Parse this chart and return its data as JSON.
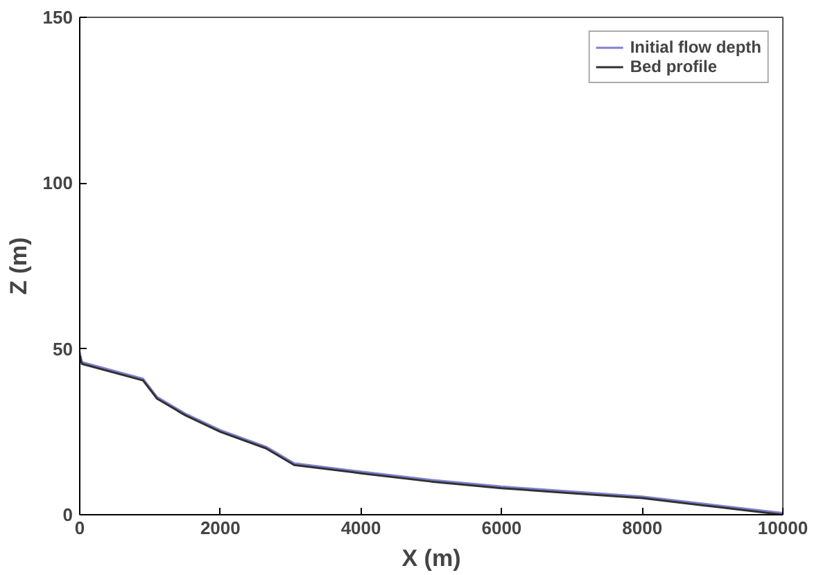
{
  "chart_data": {
    "type": "line",
    "xlabel": "X (m)",
    "ylabel": "Z (m)",
    "xlim": [
      0,
      10000
    ],
    "ylim": [
      0,
      150
    ],
    "xticks": [
      0,
      2000,
      4000,
      6000,
      8000,
      10000
    ],
    "yticks": [
      0,
      50,
      100,
      150
    ],
    "grid": false,
    "legend": "top right",
    "line_style": "solid",
    "marker": "none",
    "x": [
      0,
      30,
      900,
      1100,
      1500,
      2000,
      2650,
      3050,
      4000,
      5000,
      6000,
      7000,
      8000,
      9000,
      10000
    ],
    "series": [
      {
        "name": "Initial flow depth",
        "color": "#8080d0",
        "values": [
          49,
          46,
          41,
          35.5,
          30.5,
          25.5,
          20.5,
          15.5,
          13,
          10.5,
          8.5,
          7,
          5.5,
          3,
          0.5
        ]
      },
      {
        "name": "Bed profile",
        "color": "#303030",
        "values": [
          48,
          45.5,
          40.5,
          35,
          30,
          25,
          20,
          15,
          12.5,
          10,
          8,
          6.5,
          5,
          2.5,
          0
        ]
      }
    ]
  }
}
